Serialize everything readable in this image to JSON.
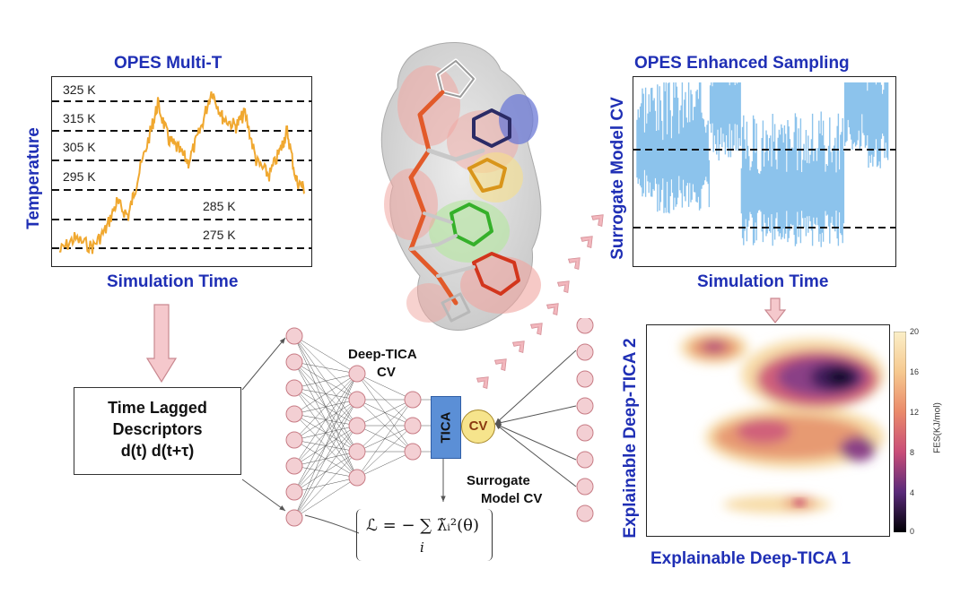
{
  "panel_multit": {
    "title": "OPES Multi-T",
    "xlabel": "Simulation Time",
    "ylabel": "Temperature",
    "temperature_levels": [
      "325 K",
      "315 K",
      "305 K",
      "295 K",
      "285 K",
      "275 K"
    ],
    "trace_color": "#f0a830"
  },
  "panel_enhanced": {
    "title": "OPES Enhanced Sampling",
    "xlabel": "Simulation Time",
    "ylabel": "Surrogate Model CV",
    "trace_color": "#8cc3ec"
  },
  "panel_fes": {
    "xlabel": "Explainable Deep-TICA 1",
    "ylabel": "Explainable Deep-TICA 2",
    "colorbar_label": "FES(KJ/mol)",
    "colorbar_ticks": [
      "20",
      "16",
      "12",
      "8",
      "4",
      "0"
    ]
  },
  "descriptors": {
    "line1": "Time Lagged",
    "line2": "Descriptors",
    "line3": "d(t) d(t+τ)"
  },
  "network": {
    "deep_tica_label_1": "Deep-TICA",
    "deep_tica_label_2": "CV",
    "tica_label": "TICA",
    "cv_label": "CV",
    "surrogate_label_1": "Surrogate",
    "surrogate_label_2": "Model CV",
    "loss_formula": "ℒ = − ∑ λ̃ᵢ²(θ)",
    "loss_index": "i",
    "node_fill": "#f3cfd3",
    "node_stroke": "#c77b84"
  },
  "colors": {
    "title_blue": "#1f2fb5",
    "arrow_pink": "#f2b7bd"
  }
}
